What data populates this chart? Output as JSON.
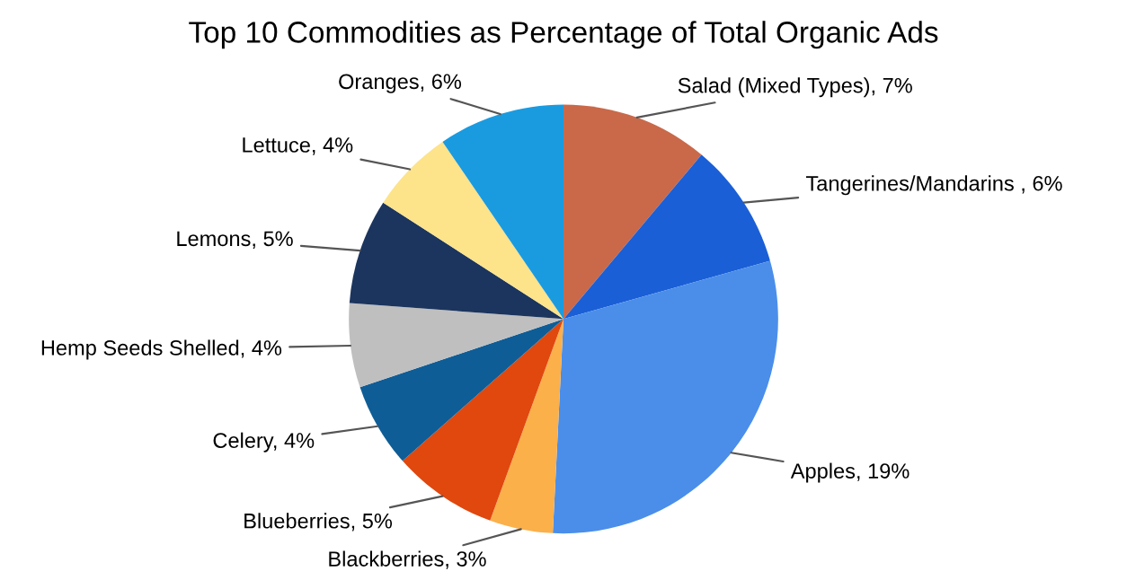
{
  "chart_data": {
    "type": "pie",
    "title": "Top 10 Commodities as Percentage of Total Organic Ads",
    "categories": [
      "Salad (Mixed Types), 7%",
      "Tangerines/Mandarins , 6%",
      "Apples, 19%",
      "Blackberries, 3%",
      "Blueberries, 5%",
      "Celery, 4%",
      "Hemp Seeds Shelled, 4%",
      "Lemons, 5%",
      "Lettuce, 4%",
      "Oranges, 6%"
    ],
    "values": [
      7,
      6,
      19,
      3,
      5,
      4,
      4,
      5,
      4,
      6
    ],
    "colors": [
      "#c9694a",
      "#1a5fd6",
      "#4a8eea",
      "#fbb04a",
      "#e0480e",
      "#0f5d96",
      "#bfbfbf",
      "#1b355e",
      "#fde38a",
      "#1a9be0"
    ],
    "legend": false
  }
}
